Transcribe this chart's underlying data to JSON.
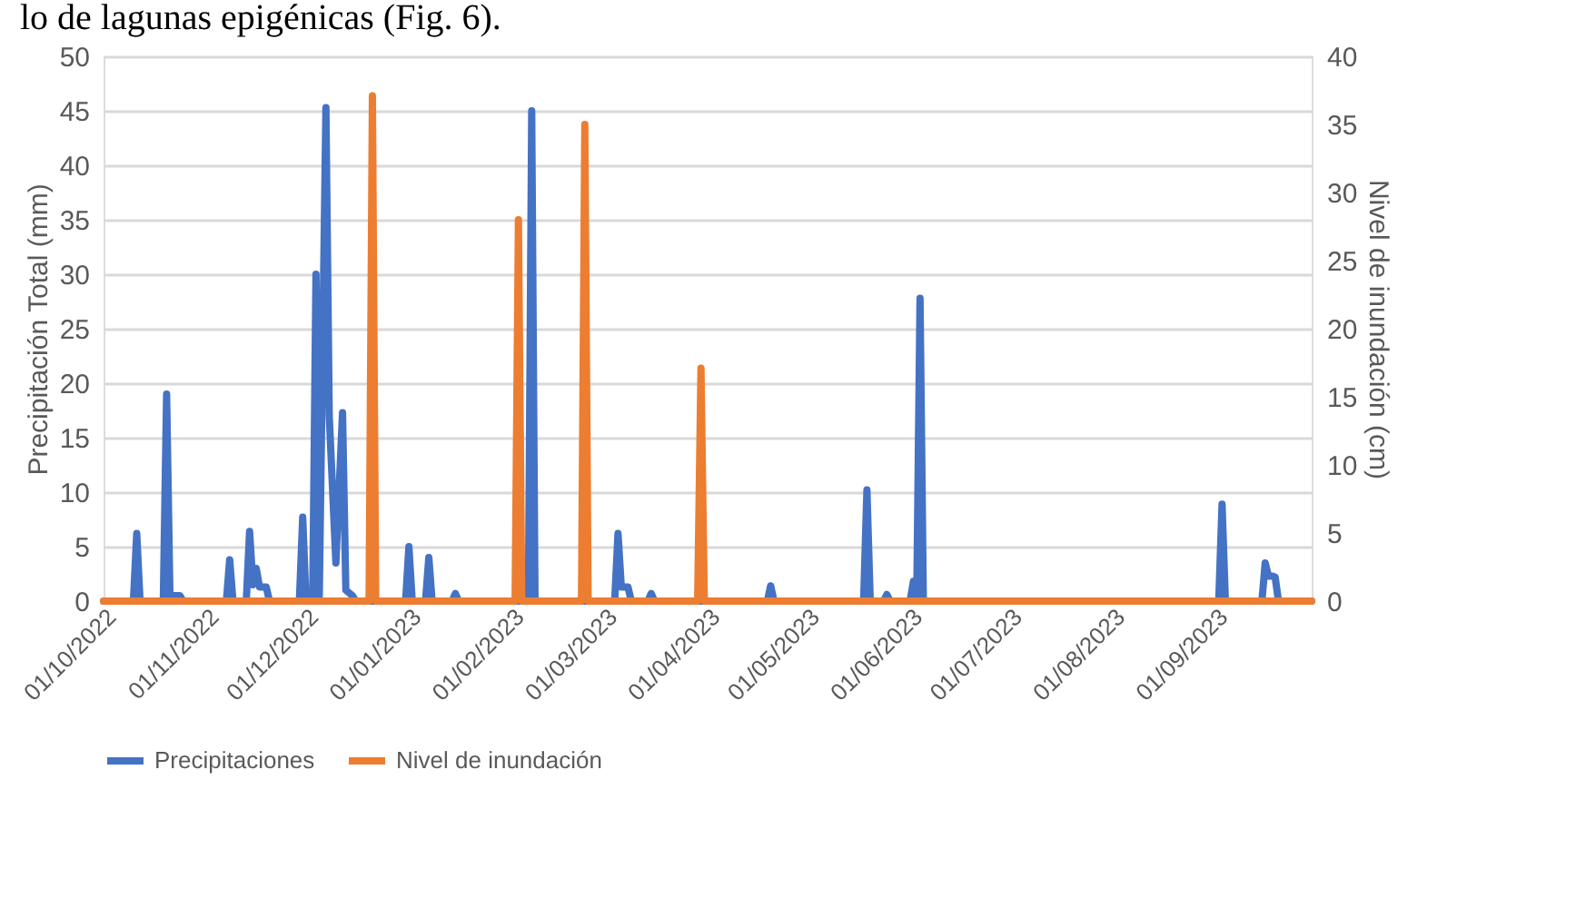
{
  "chart_data": {
    "type": "line",
    "annotations": [
      "lo de lagunas epigénicas (Fig. 6)."
    ],
    "ylabel": "Precipitación Total (mm)",
    "y2label": "Nivel de inundación (cm)",
    "ylim": [
      0,
      50
    ],
    "yticks": [
      0,
      5,
      10,
      15,
      20,
      25,
      30,
      35,
      40,
      45,
      50
    ],
    "y2lim": [
      0,
      40
    ],
    "y2ticks": [
      0,
      5,
      10,
      15,
      20,
      25,
      30,
      35,
      40
    ],
    "xlim": [
      "2022-10-01",
      "2023-09-30"
    ],
    "xticks": [
      {
        "value": "2022-10-01",
        "label": "01/10/2022"
      },
      {
        "value": "2022-11-01",
        "label": "01/11/2022"
      },
      {
        "value": "2022-12-01",
        "label": "01/12/2022"
      },
      {
        "value": "2023-01-01",
        "label": "01/01/2023"
      },
      {
        "value": "2023-02-01",
        "label": "01/02/2023"
      },
      {
        "value": "2023-03-01",
        "label": "01/03/2023"
      },
      {
        "value": "2023-04-01",
        "label": "01/04/2023"
      },
      {
        "value": "2023-05-01",
        "label": "01/05/2023"
      },
      {
        "value": "2023-06-01",
        "label": "01/06/2023"
      },
      {
        "value": "2023-07-01",
        "label": "01/07/2023"
      },
      {
        "value": "2023-08-01",
        "label": "01/08/2023"
      },
      {
        "value": "2023-09-01",
        "label": "01/09/2023"
      }
    ],
    "grid": "y",
    "legend": "bottom",
    "line_style": "solid",
    "marker": "none",
    "series": [
      {
        "name": "Precipitaciones",
        "color": "#4472c4",
        "x": [
          "2022-10-01",
          "2022-10-10",
          "2022-10-11",
          "2022-10-12",
          "2022-10-19",
          "2022-10-20",
          "2022-10-21",
          "2022-10-24",
          "2022-10-25",
          "2022-11-07",
          "2022-11-08",
          "2022-11-09",
          "2022-11-13",
          "2022-11-14",
          "2022-11-15",
          "2022-11-16",
          "2022-11-17",
          "2022-11-19",
          "2022-11-20",
          "2022-11-29",
          "2022-11-30",
          "2022-12-01",
          "2022-12-03",
          "2022-12-04",
          "2022-12-05",
          "2022-12-07",
          "2022-12-08",
          "2022-12-10",
          "2022-12-12",
          "2022-12-13",
          "2022-12-15",
          "2022-12-16",
          "2022-12-31",
          "2023-01-01",
          "2023-01-02",
          "2023-01-06",
          "2023-01-07",
          "2023-01-08",
          "2023-01-14",
          "2023-01-15",
          "2023-01-16",
          "2023-02-06",
          "2023-02-07",
          "2023-02-08",
          "2023-03-04",
          "2023-03-05",
          "2023-03-06",
          "2023-03-08",
          "2023-03-09",
          "2023-03-14",
          "2023-03-15",
          "2023-03-16",
          "2023-04-19",
          "2023-04-20",
          "2023-04-21",
          "2023-05-18",
          "2023-05-19",
          "2023-05-20",
          "2023-05-24",
          "2023-05-25",
          "2023-05-26",
          "2023-06-01",
          "2023-06-02",
          "2023-06-03",
          "2023-06-04",
          "2023-06-05",
          "2023-09-02",
          "2023-09-03",
          "2023-09-04",
          "2023-09-15",
          "2023-09-16",
          "2023-09-17",
          "2023-09-18",
          "2023-09-19",
          "2023-09-20",
          "2023-09-30"
        ],
        "values": [
          0,
          0,
          6.2,
          0,
          0,
          19,
          0.5,
          0.5,
          0,
          0,
          3.8,
          0,
          0,
          6.4,
          1.5,
          3,
          1.3,
          1.3,
          0,
          0,
          7.7,
          0,
          0,
          30,
          0.5,
          45.3,
          17,
          3.5,
          17.3,
          1,
          0.5,
          0,
          0,
          5,
          0,
          0,
          4,
          0,
          0,
          0.7,
          0,
          0,
          45,
          0,
          0,
          6.2,
          1.3,
          1.3,
          0,
          0,
          0.7,
          0,
          0,
          1.4,
          0,
          0,
          10.2,
          0,
          0,
          0.6,
          0,
          0,
          1.8,
          0,
          27.8,
          0,
          0,
          8.9,
          0,
          0,
          3.5,
          2.3,
          2.3,
          2.2,
          0,
          0
        ]
      },
      {
        "name": "Nivel de inundación",
        "color": "#ed7d31",
        "axis": "y2",
        "x": [
          "2022-10-01",
          "2022-12-20",
          "2022-12-21",
          "2022-12-22",
          "2023-02-02",
          "2023-02-03",
          "2023-02-04",
          "2023-02-22",
          "2023-02-23",
          "2023-02-24",
          "2023-03-29",
          "2023-03-30",
          "2023-03-31",
          "2023-09-30"
        ],
        "values": [
          0,
          0,
          37.1,
          0,
          0,
          28,
          0,
          0,
          35,
          0,
          0,
          17.1,
          0,
          0
        ]
      }
    ]
  }
}
